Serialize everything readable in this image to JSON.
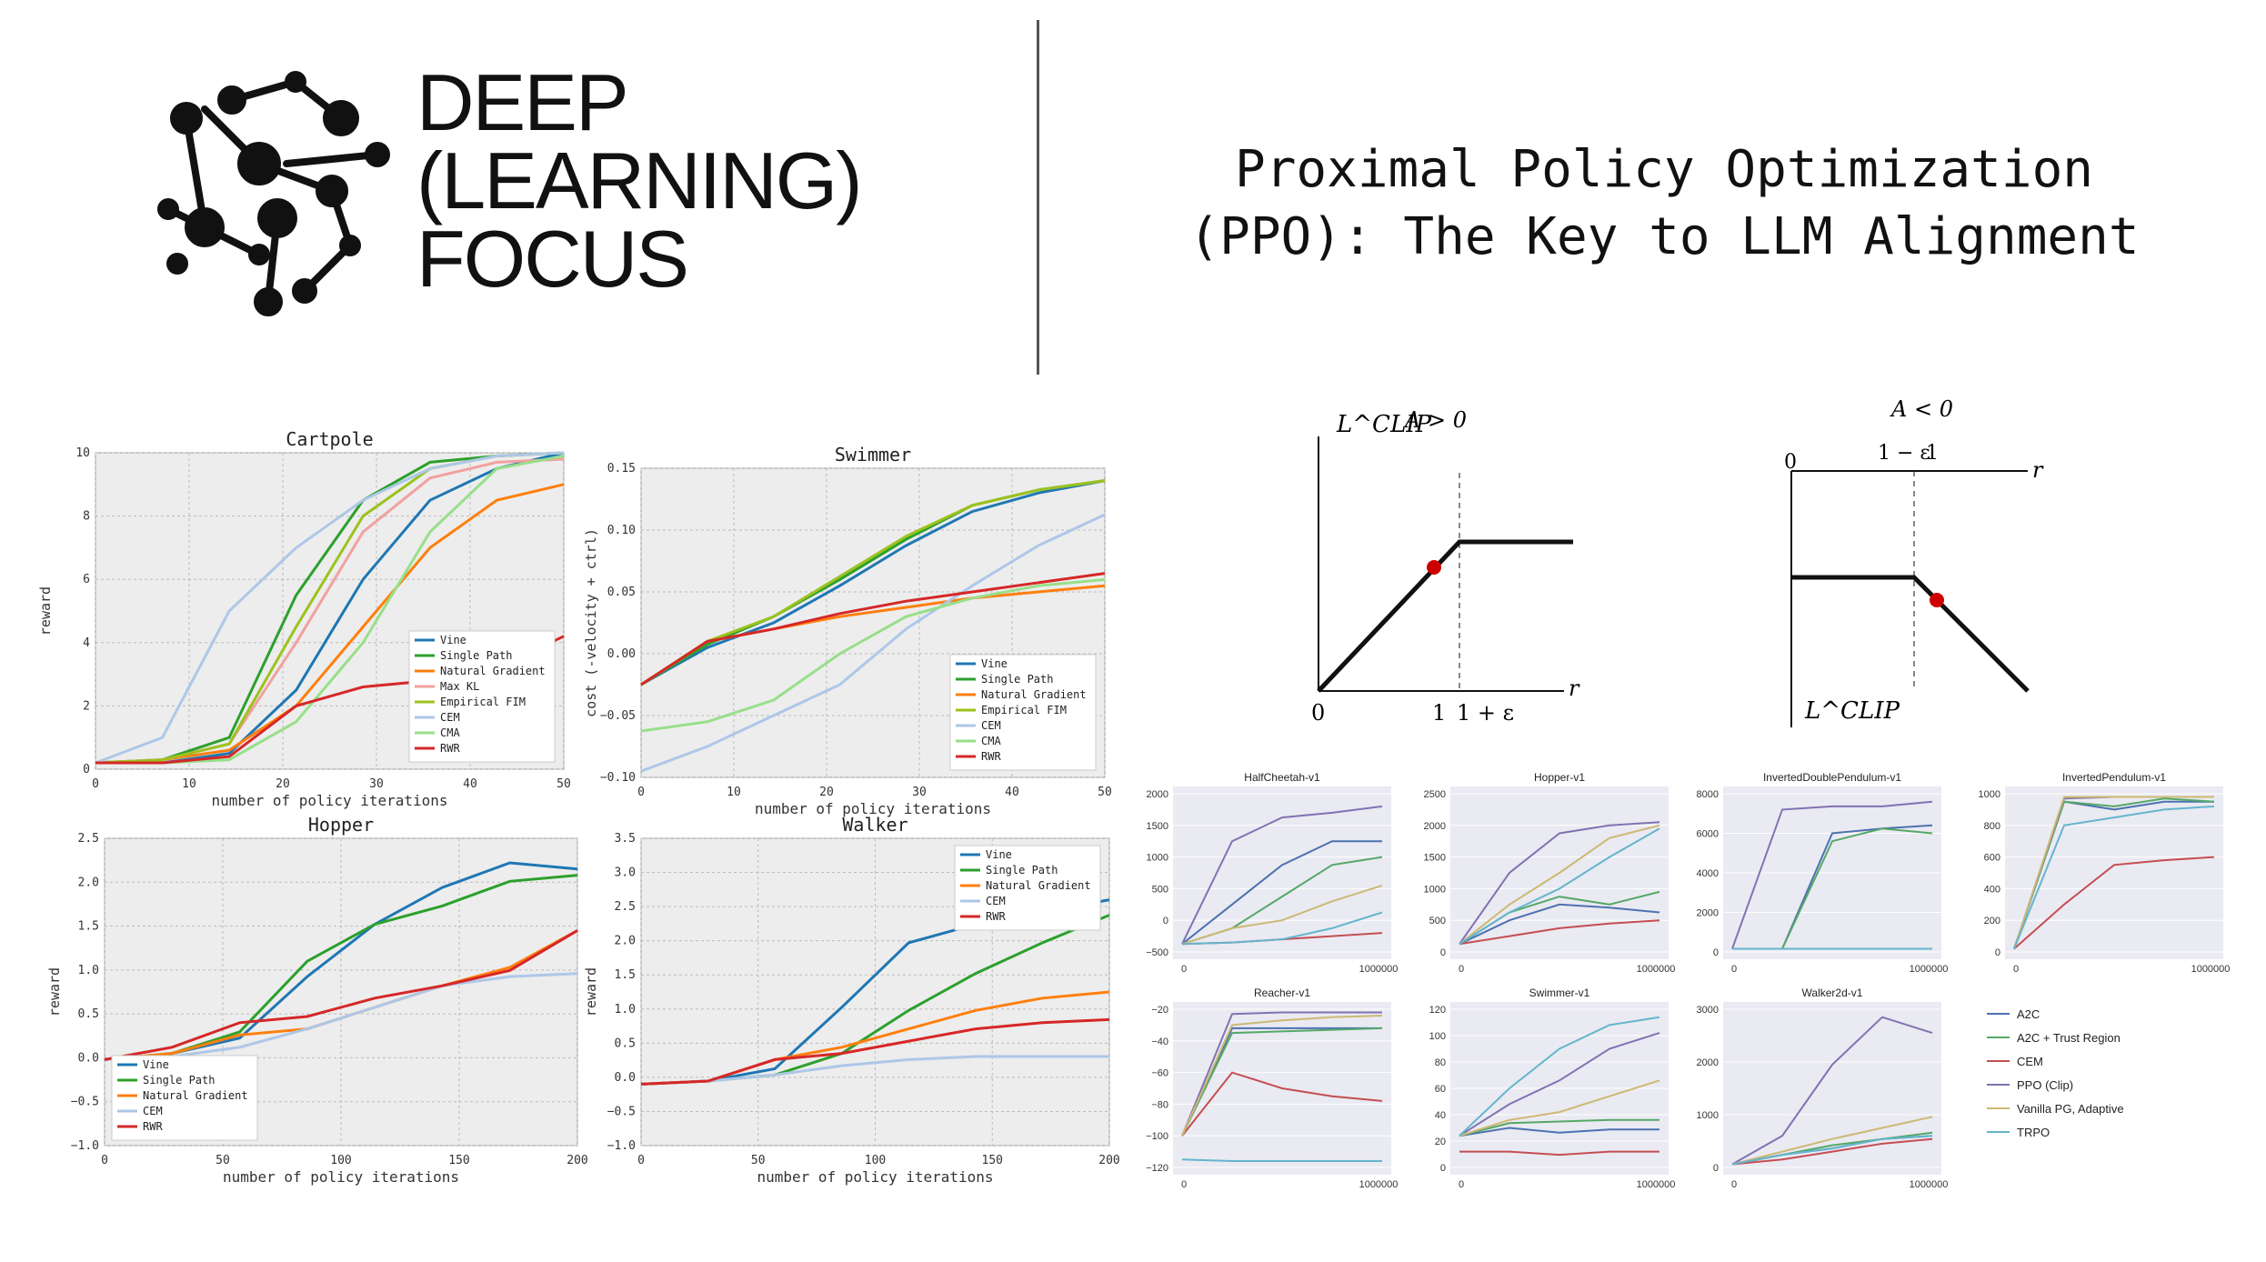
{
  "brand": {
    "line1": "DEEP",
    "line2": "(LEARNING)",
    "line3": "FOCUS",
    "logo_icon": "brain-network-icon"
  },
  "title": {
    "line1": "Proximal Policy Optimization",
    "line2": "(PPO): The Key to LLM Alignment"
  },
  "trpo_charts": [
    {
      "title": "Cartpole",
      "xlabel": "number of policy iterations",
      "ylabel": "reward",
      "xticks": [
        "0",
        "10",
        "20",
        "30",
        "40",
        "50"
      ],
      "yticks": [
        "0",
        "2",
        "4",
        "6",
        "8",
        "10"
      ],
      "legend": [
        "Vine",
        "Single Path",
        "Natural Gradient",
        "Max KL",
        "Empirical FIM",
        "CEM",
        "CMA",
        "RWR"
      ]
    },
    {
      "title": "Swimmer",
      "xlabel": "number of policy iterations",
      "ylabel": "cost (-velocity + ctrl)",
      "xticks": [
        "0",
        "10",
        "20",
        "30",
        "40",
        "50"
      ],
      "yticks": [
        "−0.10",
        "−0.05",
        "0.00",
        "0.05",
        "0.10",
        "0.15"
      ],
      "legend": [
        "Vine",
        "Single Path",
        "Natural Gradient",
        "Empirical FIM",
        "CEM",
        "CMA",
        "RWR"
      ]
    },
    {
      "title": "Hopper",
      "xlabel": "number of policy iterations",
      "ylabel": "reward",
      "xticks": [
        "0",
        "50",
        "100",
        "150",
        "200"
      ],
      "yticks": [
        "−1.0",
        "−0.5",
        "0.0",
        "0.5",
        "1.0",
        "1.5",
        "2.0",
        "2.5"
      ],
      "legend": [
        "Vine",
        "Single Path",
        "Natural Gradient",
        "CEM",
        "RWR"
      ]
    },
    {
      "title": "Walker",
      "xlabel": "number of policy iterations",
      "ylabel": "reward",
      "xticks": [
        "0",
        "50",
        "100",
        "150",
        "200"
      ],
      "yticks": [
        "−1.0",
        "−0.5",
        "0.0",
        "0.5",
        "1.0",
        "1.5",
        "2.0",
        "2.5",
        "3.0",
        "3.5"
      ],
      "legend": [
        "Vine",
        "Single Path",
        "Natural Gradient",
        "CEM",
        "RWR"
      ]
    }
  ],
  "clip_diagrams": [
    {
      "title": "A > 0",
      "ylabel": "L^CLIP",
      "xlabel": "r",
      "ticks": [
        "0",
        "1",
        "1 + ε"
      ]
    },
    {
      "title": "A < 0",
      "ylabel": "L^CLIP",
      "xlabel": "r",
      "ticks": [
        "0",
        "1 − ε",
        "1"
      ]
    }
  ],
  "mujoco": {
    "panels": [
      {
        "title": "HalfCheetah-v1",
        "yticks": [
          "−500",
          "0",
          "500",
          "1000",
          "1500",
          "2000"
        ],
        "xticks": [
          "0",
          "1000000"
        ]
      },
      {
        "title": "Hopper-v1",
        "yticks": [
          "0",
          "500",
          "1000",
          "1500",
          "2000",
          "2500"
        ],
        "xticks": [
          "0",
          "1000000"
        ]
      },
      {
        "title": "InvertedDoublePendulum-v1",
        "yticks": [
          "0",
          "2000",
          "4000",
          "6000",
          "8000"
        ],
        "xticks": [
          "0",
          "1000000"
        ]
      },
      {
        "title": "InvertedPendulum-v1",
        "yticks": [
          "0",
          "200",
          "400",
          "600",
          "800",
          "1000"
        ],
        "xticks": [
          "0",
          "1000000"
        ]
      },
      {
        "title": "Reacher-v1",
        "yticks": [
          "−120",
          "−100",
          "−80",
          "−60",
          "−40",
          "−20"
        ],
        "xticks": [
          "0",
          "1000000"
        ]
      },
      {
        "title": "Swimmer-v1",
        "yticks": [
          "0",
          "20",
          "40",
          "60",
          "80",
          "100",
          "120"
        ],
        "xticks": [
          "0",
          "1000000"
        ]
      },
      {
        "title": "Walker2d-v1",
        "yticks": [
          "0",
          "1000",
          "2000",
          "3000"
        ],
        "xticks": [
          "0",
          "1000000"
        ]
      }
    ],
    "legend": [
      "A2C",
      "A2C + Trust Region",
      "CEM",
      "PPO (Clip)",
      "Vanilla PG, Adaptive",
      "TRPO"
    ],
    "colors": [
      "#4c72b0",
      "#55a868",
      "#c44e52",
      "#8172b2",
      "#ccb974",
      "#64b5cd"
    ]
  },
  "colors": {
    "Vine": "#1f77b4",
    "Single Path": "#2ca02c",
    "Natural Gradient": "#ff7f0e",
    "Max KL": "#f2a0a0",
    "Empirical FIM": "#9cc21e",
    "CEM": "#aec7e8",
    "CMA": "#98df8a",
    "RWR": "#d62728"
  }
}
